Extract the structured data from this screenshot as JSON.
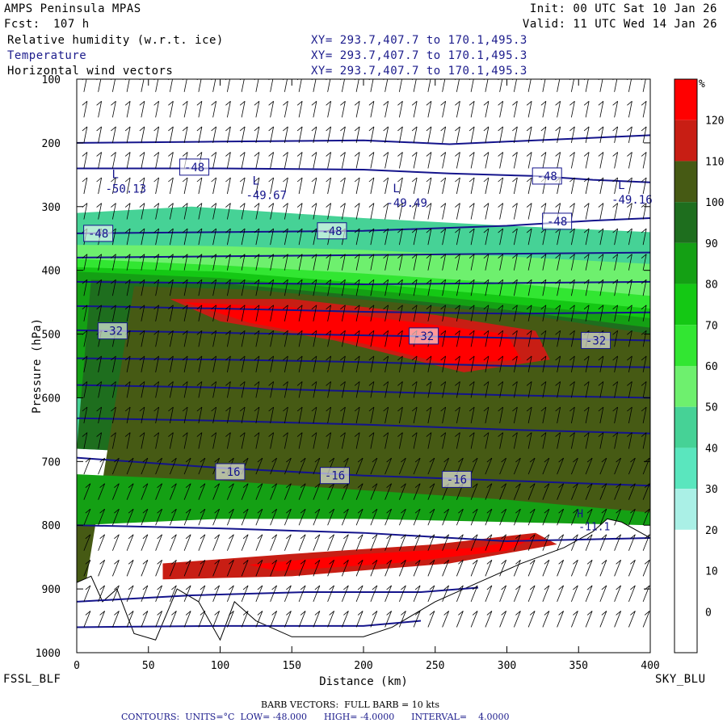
{
  "header": {
    "model": "AMPS Peninsula MPAS",
    "fcst_label": "Fcst:",
    "fcst_value": "107 h",
    "init": "Init: 00 UTC Sat 10 Jan 26",
    "valid": "Valid: 11 UTC Wed 14 Jan 26",
    "fields": [
      {
        "name": "Relative humidity (w.r.t. ice)",
        "xy": "XY= 293.7,407.7 to 170.1,495.3",
        "color": "#000000"
      },
      {
        "name": "Temperature",
        "xy": "XY= 293.7,407.7 to 170.1,495.3",
        "color": "#1c1c8c"
      },
      {
        "name": "Horizontal wind vectors",
        "xy": "XY= 293.7,407.7 to 170.1,495.3",
        "color": "#000000"
      }
    ]
  },
  "footer": {
    "left_station": "FSSL_BLF",
    "right_station": "SKY_BLU",
    "barb_note": "BARB VECTORS:  FULL BARB = 10 kts",
    "contours_note": "CONTOURS:  UNITS=°C  LOW= -48.000      HIGH= -4.0000      INTERVAL=    4.0000"
  },
  "chart_data": {
    "type": "heatmap",
    "xlabel": "Distance (km)",
    "ylabel": "Pressure (hPa)",
    "xlim": [
      0,
      400
    ],
    "ylim": [
      1000,
      100
    ],
    "x_ticks": [
      0,
      50,
      100,
      150,
      200,
      250,
      300,
      350,
      400
    ],
    "y_ticks": [
      100,
      200,
      300,
      400,
      500,
      600,
      700,
      800,
      900,
      1000
    ],
    "colorbar": {
      "unit": "%",
      "levels": [
        120,
        110,
        100,
        90,
        80,
        70,
        60,
        50,
        40,
        30,
        20,
        10,
        0
      ],
      "colors": [
        "#ff0000",
        "#c81e14",
        "#465a14",
        "#1e6e1e",
        "#14a014",
        "#14c814",
        "#32e632",
        "#6ef06e",
        "#46d296",
        "#5ae6be",
        "#aaf0e6",
        "#ffffff",
        "#ffffff",
        "#ffffff"
      ]
    },
    "temperature_contours": {
      "color": "#14148c",
      "units": "°C",
      "low": -48,
      "high": -4,
      "interval": 4,
      "labels": [
        {
          "text": "-48",
          "x": 82,
          "p": 238
        },
        {
          "text": "-48",
          "x": 328,
          "p": 252
        },
        {
          "text": "-48",
          "x": 15,
          "p": 342
        },
        {
          "text": "-48",
          "x": 178,
          "p": 338
        },
        {
          "text": "-48",
          "x": 335,
          "p": 323
        },
        {
          "text": "-32",
          "x": 25,
          "p": 495
        },
        {
          "text": "-32",
          "x": 242,
          "p": 503
        },
        {
          "text": "-32",
          "x": 362,
          "p": 510
        },
        {
          "text": "-16",
          "x": 107,
          "p": 716
        },
        {
          "text": "-16",
          "x": 180,
          "p": 722
        },
        {
          "text": "-16",
          "x": 265,
          "p": 728
        }
      ],
      "minima": [
        {
          "mark": "L",
          "value": "-50.13",
          "x": 20,
          "p": 278
        },
        {
          "mark": "L",
          "value": "-49.67",
          "x": 118,
          "p": 288
        },
        {
          "mark": "L",
          "value": "-49.49",
          "x": 216,
          "p": 300
        },
        {
          "mark": "L",
          "value": "-49.16",
          "x": 373,
          "p": 295
        }
      ],
      "local_max": {
        "mark": "H",
        "value": "-11.1",
        "x": 350,
        "p": 808
      }
    },
    "wind_barbs": {
      "full_barb_kts": 10
    }
  }
}
